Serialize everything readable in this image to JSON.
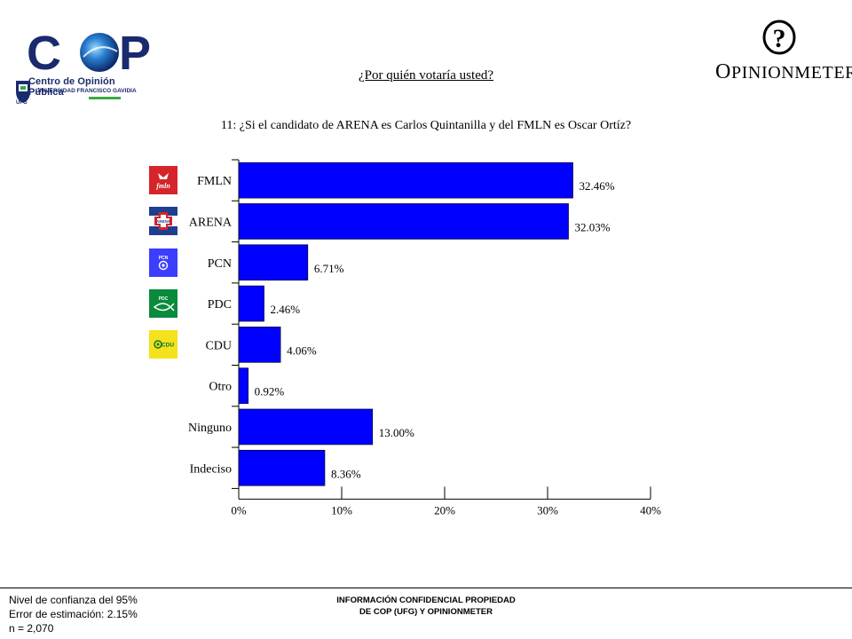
{
  "header": {
    "cop_logo_text": "COP",
    "cop_subtitle": "Centro de Opinión Pública",
    "university": "UNIVERSIDAD FRANCISCO GAVIDIA",
    "university_abbr": "UFG",
    "opinionmeter": "OPINIONMETER",
    "question_title": "¿Por quién votaría usted?"
  },
  "colors": {
    "bar": "#0000ff",
    "cop_blue": "#1a2a6e"
  },
  "party_logos": [
    {
      "party": "FMLN",
      "icon": "fmln-logo-icon",
      "color": "#d5252a",
      "text": "fmln"
    },
    {
      "party": "ARENA",
      "icon": "arena-logo-icon",
      "color": "#1f3e8e",
      "text": "ARENA"
    },
    {
      "party": "PCN",
      "icon": "pcn-logo-icon",
      "color": "#3d3dff",
      "text": "PCN"
    },
    {
      "party": "PDC",
      "icon": "pdc-logo-icon",
      "color": "#0a8a3c",
      "text": "PDC"
    },
    {
      "party": "CDU",
      "icon": "cdu-logo-icon",
      "color": "#f4e21c",
      "text": "CDU"
    }
  ],
  "chart_data": {
    "type": "bar",
    "orientation": "horizontal",
    "title": "11: ¿Si el candidato de ARENA es Carlos Quintanilla y del FMLN es Oscar Ortíz?",
    "categories": [
      "FMLN",
      "ARENA",
      "PCN",
      "PDC",
      "CDU",
      "Otro",
      "Ninguno",
      "Indeciso"
    ],
    "values": [
      32.46,
      32.03,
      6.71,
      2.46,
      4.06,
      0.92,
      13.0,
      8.36
    ],
    "value_labels": [
      "32.46%",
      "32.03%",
      "6.71%",
      "2.46%",
      "4.06%",
      "0.92%",
      "13.00%",
      "8.36%"
    ],
    "xlim": [
      0,
      40
    ],
    "ticks": [
      0,
      10,
      20,
      30,
      40
    ],
    "tick_labels": [
      "0%",
      "10%",
      "20%",
      "30%",
      "40%"
    ],
    "xlabel": "",
    "ylabel": "",
    "grid": false,
    "legend": "none"
  },
  "footer": {
    "confidence": "Nivel de confianza del 95%",
    "error": "Error de estimación: 2.15%",
    "sample": "n = 2,070",
    "confidential_line1": "INFORMACIÓN CONFIDENCIAL PROPIEDAD",
    "confidential_line2": "DE COP (UFG) Y OPINIONMETER"
  }
}
